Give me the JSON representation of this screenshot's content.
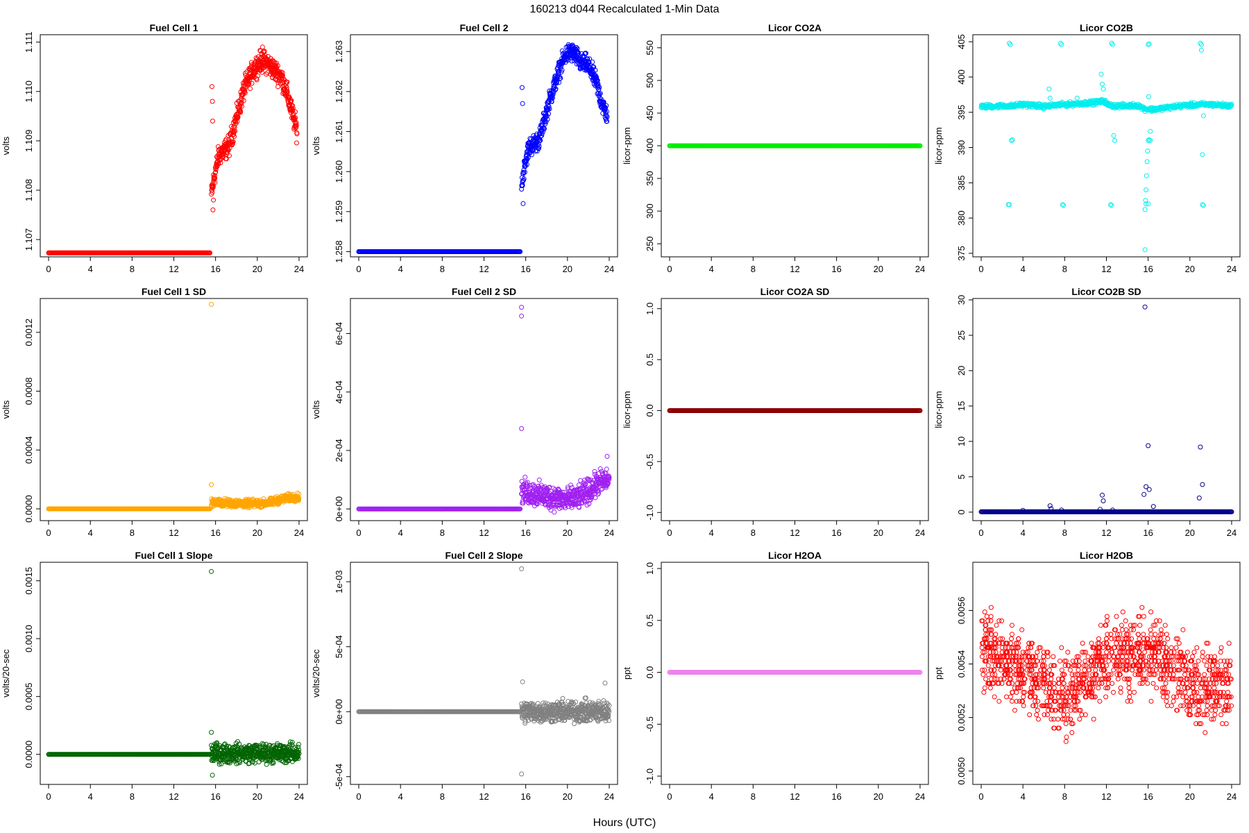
{
  "figure": {
    "title": "160213   d044   Recalculated 1-Min Data",
    "xlabel": "Hours (UTC)"
  },
  "chart_data": [
    {
      "type": "scatter",
      "title": "Fuel Cell 1",
      "ylabel": "volts",
      "color": "#ff0000",
      "xlim": [
        -0.8,
        24.8
      ],
      "ylim": [
        1.10665,
        1.11115
      ],
      "xticks": [
        0,
        4,
        8,
        12,
        16,
        20,
        24
      ],
      "yticks": [
        1.107,
        1.108,
        1.109,
        1.11,
        1.111
      ],
      "ytick_labels": [
        "1.107",
        "1.108",
        "1.109",
        "1.110",
        "1.111"
      ],
      "flat": {
        "x_from": 0,
        "x_to": 15.5,
        "y": 1.10673
      },
      "trend_x": [
        15.6,
        15.9,
        16.3,
        16.8,
        17.3,
        17.8,
        18.3,
        18.8,
        19.3,
        19.8,
        20.3,
        20.8,
        21.3,
        21.8,
        22.3,
        22.8,
        23.3,
        23.8
      ],
      "trend_y": [
        1.1079,
        1.1083,
        1.1087,
        1.1088,
        1.1089,
        1.1093,
        1.1097,
        1.1101,
        1.1103,
        1.1105,
        1.1106,
        1.1106,
        1.1105,
        1.1104,
        1.1103,
        1.11,
        1.1096,
        1.1092
      ],
      "noise": 0.00018,
      "outliers": [
        [
          15.65,
          1.1101
        ],
        [
          15.7,
          1.1098
        ],
        [
          15.72,
          1.1094
        ],
        [
          15.75,
          1.1076
        ],
        [
          15.8,
          1.1078
        ],
        [
          20.5,
          1.1109
        ]
      ]
    },
    {
      "type": "scatter",
      "title": "Fuel Cell 2",
      "ylabel": "volts",
      "color": "#0000ff",
      "xlim": [
        -0.8,
        24.8
      ],
      "ylim": [
        1.25787,
        1.26342
      ],
      "xticks": [
        0,
        4,
        8,
        12,
        16,
        20,
        24
      ],
      "yticks": [
        1.258,
        1.259,
        1.26,
        1.261,
        1.262,
        1.263
      ],
      "ytick_labels": [
        "1.258",
        "1.259",
        "1.260",
        "1.261",
        "1.262",
        "1.263"
      ],
      "flat": {
        "x_from": 0,
        "x_to": 15.5,
        "y": 1.258
      },
      "trend_x": [
        15.6,
        15.9,
        16.3,
        16.8,
        17.3,
        17.8,
        18.3,
        18.8,
        19.3,
        19.8,
        20.3,
        20.8,
        21.3,
        21.8,
        22.3,
        22.8,
        23.3,
        23.8
      ],
      "trend_y": [
        1.2596,
        1.2602,
        1.2606,
        1.2607,
        1.2608,
        1.2613,
        1.2618,
        1.2622,
        1.2626,
        1.2629,
        1.263,
        1.2629,
        1.2627,
        1.2627,
        1.2625,
        1.2622,
        1.2617,
        1.2614
      ],
      "noise": 0.0002,
      "outliers": [
        [
          15.65,
          1.2621
        ],
        [
          15.7,
          1.2617
        ],
        [
          15.75,
          1.2592
        ],
        [
          20.4,
          1.2631
        ]
      ]
    },
    {
      "type": "scatter",
      "title": "Licor CO2A",
      "ylabel": "licor-ppm",
      "color": "#00ee00",
      "xlim": [
        -0.8,
        24.8
      ],
      "ylim": [
        230,
        570
      ],
      "xticks": [
        0,
        4,
        8,
        12,
        16,
        20,
        24
      ],
      "yticks": [
        250,
        300,
        350,
        400,
        450,
        500,
        550
      ],
      "ytick_labels": [
        "250",
        "300",
        "350",
        "400",
        "450",
        "500",
        "550"
      ],
      "flat": {
        "x_from": 0,
        "x_to": 24,
        "y": 400
      }
    },
    {
      "type": "scatter",
      "title": "Licor CO2B",
      "ylabel": "licor-ppm",
      "color": "#00eeee",
      "xlim": [
        -0.8,
        24.8
      ],
      "ylim": [
        374.5,
        406
      ],
      "xticks": [
        0,
        4,
        8,
        12,
        16,
        20,
        24
      ],
      "yticks": [
        375,
        380,
        385,
        390,
        395,
        400,
        405
      ],
      "ytick_labels": [
        "375",
        "380",
        "385",
        "390",
        "395",
        "400",
        "405"
      ],
      "baseline_x": [
        0,
        2,
        3,
        4,
        5,
        6,
        7,
        8,
        9,
        10,
        11,
        11.8,
        12.2,
        13,
        14,
        15,
        15.6,
        16.4,
        17,
        18,
        19,
        20,
        21,
        22,
        23,
        24
      ],
      "baseline_y": [
        395.8,
        395.9,
        395.9,
        396.1,
        396.0,
        395.8,
        396.0,
        396.1,
        396.2,
        396.3,
        396.4,
        396.6,
        396.0,
        395.9,
        395.9,
        396.0,
        395.5,
        395.4,
        395.5,
        395.7,
        395.9,
        396.0,
        396.1,
        396.1,
        396.0,
        395.9
      ],
      "noise": 0.25,
      "outliers": [
        [
          2.7,
          404.8
        ],
        [
          2.8,
          404.6
        ],
        [
          2.9,
          391.0
        ],
        [
          3.0,
          391.1
        ],
        [
          2.6,
          381.9
        ],
        [
          2.7,
          381.9
        ],
        [
          6.5,
          398.3
        ],
        [
          6.6,
          397.0
        ],
        [
          7.6,
          404.8
        ],
        [
          7.7,
          404.6
        ],
        [
          7.8,
          381.9
        ],
        [
          7.9,
          381.8
        ],
        [
          9.2,
          397.0
        ],
        [
          11.5,
          400.4
        ],
        [
          11.6,
          399.0
        ],
        [
          11.7,
          398.3
        ],
        [
          12.5,
          404.8
        ],
        [
          12.6,
          404.6
        ],
        [
          12.7,
          391.7
        ],
        [
          12.8,
          391.0
        ],
        [
          12.4,
          381.9
        ],
        [
          12.5,
          381.8
        ],
        [
          15.7,
          375.5
        ],
        [
          15.75,
          382.5
        ],
        [
          15.8,
          384.0
        ],
        [
          15.85,
          386.0
        ],
        [
          15.9,
          388.0
        ],
        [
          15.95,
          389.5
        ],
        [
          16.0,
          391.0
        ],
        [
          16.1,
          391.1
        ],
        [
          15.7,
          381.2
        ],
        [
          15.8,
          382.0
        ],
        [
          16.0,
          382.0
        ],
        [
          16.2,
          392.3
        ],
        [
          16.2,
          391.0
        ],
        [
          16.1,
          404.7
        ],
        [
          16.0,
          404.6
        ],
        [
          16.05,
          397.2
        ],
        [
          21.0,
          404.8
        ],
        [
          21.1,
          404.6
        ],
        [
          21.1,
          403.8
        ],
        [
          21.3,
          394.5
        ],
        [
          21.2,
          389.0
        ],
        [
          21.2,
          381.9
        ],
        [
          21.3,
          381.8
        ]
      ]
    },
    {
      "type": "scatter",
      "title": "Fuel Cell 1 SD",
      "ylabel": "volts",
      "color": "#ffa500",
      "xlim": [
        -0.8,
        24.8
      ],
      "ylim": [
        -8e-05,
        0.00143
      ],
      "xticks": [
        0,
        4,
        8,
        12,
        16,
        20,
        24
      ],
      "yticks": [
        0,
        0.0004,
        0.0008,
        0.0012
      ],
      "ytick_labels": [
        "0.0000",
        "0.0004",
        "0.0008",
        "0.0012"
      ],
      "flat": {
        "x_from": 0,
        "x_to": 15.5,
        "y": 0
      },
      "trend_x": [
        15.6,
        17,
        19,
        21,
        22,
        23,
        24
      ],
      "trend_y": [
        4.5e-05,
        4e-05,
        3.5e-05,
        4e-05,
        6e-05,
        7.5e-05,
        8e-05
      ],
      "noise": 2.2e-05,
      "outliers": [
        [
          15.6,
          0.00139
        ],
        [
          15.6,
          0.000165
        ]
      ]
    },
    {
      "type": "scatter",
      "title": "Fuel Cell 2 SD",
      "ylabel": "volts",
      "color": "#a020f0",
      "xlim": [
        -0.8,
        24.8
      ],
      "ylim": [
        -4e-05,
        0.00072
      ],
      "xticks": [
        0,
        4,
        8,
        12,
        16,
        20,
        24
      ],
      "yticks": [
        0,
        0.0002,
        0.0004,
        0.0006
      ],
      "ytick_labels": [
        "0e+00",
        "2e-04",
        "4e-04",
        "6e-04"
      ],
      "flat": {
        "x_from": 0,
        "x_to": 15.5,
        "y": 0
      },
      "trend_x": [
        15.6,
        17,
        18.5,
        20,
        21,
        22,
        23,
        24
      ],
      "trend_y": [
        6e-05,
        5e-05,
        4e-05,
        3e-05,
        4e-05,
        6e-05,
        9e-05,
        0.0001
      ],
      "noise": 3.5e-05,
      "outliers": [
        [
          15.6,
          0.00069
        ],
        [
          15.6,
          0.00066
        ],
        [
          15.6,
          0.000275
        ],
        [
          23.8,
          0.00018
        ]
      ]
    },
    {
      "type": "scatter",
      "title": "Licor CO2A SD",
      "ylabel": "licor-ppm",
      "color": "#8b0000",
      "xlim": [
        -0.8,
        24.8
      ],
      "ylim": [
        -1.08,
        1.1
      ],
      "xticks": [
        0,
        4,
        8,
        12,
        16,
        20,
        24
      ],
      "yticks": [
        -1,
        -0.5,
        0,
        0.5,
        1
      ],
      "ytick_labels": [
        "-1.0",
        "-0.5",
        "0.0",
        "0.5",
        "1.0"
      ],
      "flat": {
        "x_from": 0,
        "x_to": 24,
        "y": 0
      }
    },
    {
      "type": "scatter",
      "title": "Licor CO2B SD",
      "ylabel": "licor-ppm",
      "color": "#00008b",
      "xlim": [
        -0.8,
        24.8
      ],
      "ylim": [
        -1.2,
        30.2
      ],
      "xticks": [
        0,
        4,
        8,
        12,
        16,
        20,
        24
      ],
      "yticks": [
        0,
        5,
        10,
        15,
        20,
        25,
        30
      ],
      "ytick_labels": [
        "0",
        "5",
        "10",
        "15",
        "20",
        "25",
        "30"
      ],
      "flat": {
        "x_from": 0,
        "x_to": 24,
        "y": 0.05
      },
      "outliers": [
        [
          4.0,
          0.25
        ],
        [
          6.6,
          0.9
        ],
        [
          6.7,
          0.5
        ],
        [
          11.4,
          0.4
        ],
        [
          11.6,
          2.4
        ],
        [
          11.7,
          1.6
        ],
        [
          12.6,
          0.3
        ],
        [
          15.7,
          29.0
        ],
        [
          15.8,
          3.6
        ],
        [
          16.0,
          9.4
        ],
        [
          16.1,
          3.2
        ],
        [
          16.5,
          0.8
        ],
        [
          15.6,
          2.5
        ],
        [
          21.0,
          9.2
        ],
        [
          21.2,
          3.9
        ],
        [
          20.9,
          2.0
        ],
        [
          7.7,
          0.3
        ]
      ]
    },
    {
      "type": "scatter",
      "title": "Fuel Cell 1 Slope",
      "ylabel": "volts/20-sec",
      "color": "#006400",
      "xlim": [
        -0.8,
        24.8
      ],
      "ylim": [
        -0.00026,
        0.00166
      ],
      "xticks": [
        0,
        4,
        8,
        12,
        16,
        20,
        24
      ],
      "yticks": [
        0,
        0.0005,
        0.001,
        0.0015
      ],
      "ytick_labels": [
        "0.0000",
        "0.0005",
        "0.0010",
        "0.0015"
      ],
      "flat": {
        "x_from": 0,
        "x_to": 15.5,
        "y": 0
      },
      "trend_x": [
        15.6,
        24
      ],
      "trend_y": [
        1e-05,
        1e-05
      ],
      "noise": 7e-05,
      "outliers": [
        [
          15.6,
          0.00158
        ],
        [
          15.6,
          0.00019
        ],
        [
          15.7,
          -0.00018
        ]
      ]
    },
    {
      "type": "scatter",
      "title": "Fuel Cell 2 Slope",
      "ylabel": "volts/20-sec",
      "color": "#808080",
      "xlim": [
        -0.8,
        24.8
      ],
      "ylim": [
        -0.00056,
        0.00115
      ],
      "xticks": [
        0,
        4,
        8,
        12,
        16,
        20,
        24
      ],
      "yticks": [
        -0.0005,
        0,
        0.0005,
        0.001
      ],
      "ytick_labels": [
        "-5e-04",
        "0e+00",
        "5e-04",
        "1e-03"
      ],
      "flat": {
        "x_from": 0,
        "x_to": 15.5,
        "y": 0
      },
      "trend_x": [
        15.6,
        24
      ],
      "trend_y": [
        0,
        0
      ],
      "noise": 7e-05,
      "outliers": [
        [
          15.6,
          0.0011
        ],
        [
          15.6,
          -0.00048
        ],
        [
          15.7,
          0.00023
        ],
        [
          23.6,
          0.00022
        ]
      ]
    },
    {
      "type": "scatter",
      "title": "Licor H2OA",
      "ylabel": "ppt",
      "color": "#ee82ee",
      "xlim": [
        -0.8,
        24.8
      ],
      "ylim": [
        -1.08,
        1.06
      ],
      "xticks": [
        0,
        4,
        8,
        12,
        16,
        20,
        24
      ],
      "yticks": [
        -1,
        -0.5,
        0,
        0.5,
        1
      ],
      "ytick_labels": [
        "-1.0",
        "-0.5",
        "0.0",
        "0.5",
        "1.0"
      ],
      "flat": {
        "x_from": 0,
        "x_to": 24,
        "y": 0
      }
    },
    {
      "type": "scatter",
      "title": "Licor H2OB",
      "ylabel": "ppt",
      "color": "#ff0000",
      "xlim": [
        -0.8,
        24.8
      ],
      "ylim": [
        0.00495,
        0.00578
      ],
      "xticks": [
        0,
        4,
        8,
        12,
        16,
        20,
        24
      ],
      "yticks": [
        0.005,
        0.0052,
        0.0054,
        0.0056
      ],
      "ytick_labels": [
        "0.0050",
        "0.0052",
        "0.0054",
        "0.0056"
      ],
      "quantized": {
        "y_min": 0.00499,
        "y_max": 0.00576,
        "step": 1.67e-05,
        "center_x": [
          0,
          4,
          8,
          12,
          16,
          20,
          24
        ],
        "center_y": [
          0.00545,
          0.00538,
          0.00528,
          0.00542,
          0.00545,
          0.00532,
          0.00532
        ],
        "spread": 0.00012,
        "count": 1300
      }
    }
  ]
}
